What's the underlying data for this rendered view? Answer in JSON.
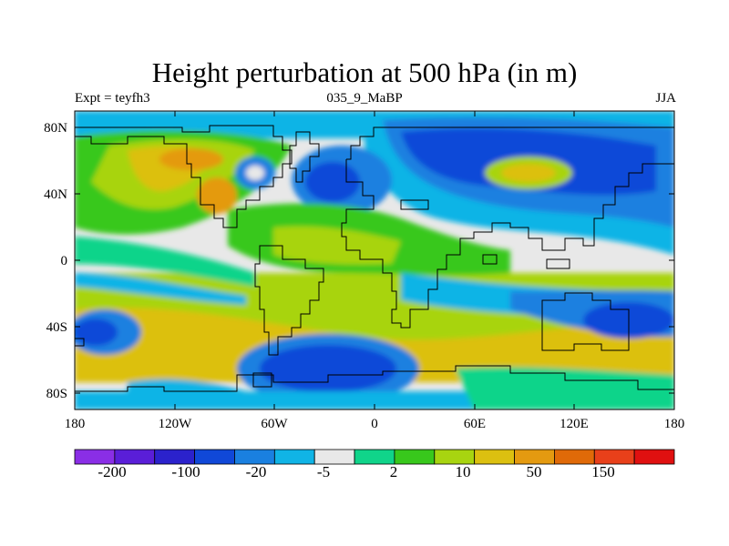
{
  "title": "Height perturbation at 500 hPa (in m)",
  "subtitle_left": "Expt = teyfh3",
  "subtitle_center": "035_9_MaBP",
  "subtitle_right": "JJA",
  "axes": {
    "lat_labels": [
      "80N",
      "40N",
      "0",
      "40S",
      "80S"
    ],
    "lon_labels": [
      "180",
      "120W",
      "60W",
      "0",
      "60E",
      "120E",
      "180"
    ]
  },
  "colorbar": {
    "labels": [
      "-200",
      "-100",
      "-20",
      "-5",
      "2",
      "10",
      "50",
      "150"
    ],
    "colors": [
      "#8a2ee6",
      "#5a1ed8",
      "#2b22cc",
      "#1048d8",
      "#1a80e0",
      "#10b4e6",
      "#e8e8e8",
      "#10d48a",
      "#38c81c",
      "#a8d410",
      "#dcc010",
      "#e49a10",
      "#e06a08",
      "#e8401a",
      "#e01010"
    ]
  },
  "colors": {
    "background": "#e8e8e8",
    "coastline": "#000000"
  }
}
